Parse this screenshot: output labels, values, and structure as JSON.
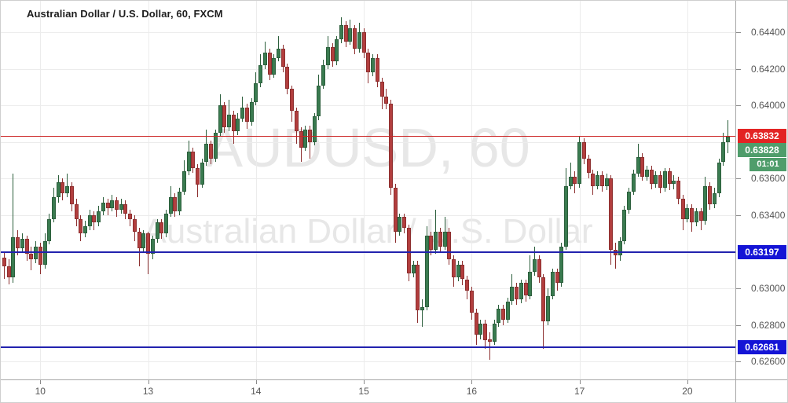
{
  "header": {
    "title": "Australian Dollar / U.S. Dollar, 60, FXCM"
  },
  "watermark": {
    "line1": "AUDUSD, 60",
    "line2": "Australian Dollar / U.S. Dollar"
  },
  "chart_data": {
    "type": "candlestick",
    "title": "Australian Dollar / U.S. Dollar, 60, FXCM",
    "grid": true,
    "legend_position": "none",
    "price_axis": {
      "visible_range": [
        0.62503,
        0.64572
      ],
      "grid_prices": [
        0.644,
        0.642,
        0.64,
        0.638,
        0.636,
        0.634,
        0.632,
        0.63,
        0.628,
        0.626
      ],
      "ticks": [
        {
          "price": 0.644,
          "label": "0.64400"
        },
        {
          "price": 0.642,
          "label": "0.64200"
        },
        {
          "price": 0.64,
          "label": "0.64000"
        },
        {
          "price": 0.636,
          "label": "0.63600"
        },
        {
          "price": 0.634,
          "label": "0.63400"
        },
        {
          "price": 0.63,
          "label": "0.63000"
        },
        {
          "price": 0.628,
          "label": "0.62800"
        },
        {
          "price": 0.626,
          "label": "0.62600"
        }
      ]
    },
    "time_axis": {
      "ticks": [
        {
          "label": "10",
          "bar": 8
        },
        {
          "label": "13",
          "bar": 32
        },
        {
          "label": "14",
          "bar": 56
        },
        {
          "label": "15",
          "bar": 80
        },
        {
          "label": "16",
          "bar": 104
        },
        {
          "label": "17",
          "bar": 128
        },
        {
          "label": "20",
          "bar": 152
        }
      ]
    },
    "horizontal_lines": [
      {
        "price": 0.63832,
        "label": "0.63832",
        "line_color": "#cc2424",
        "badge_color": "#e32424",
        "thickness": 1
      },
      {
        "price": 0.63197,
        "label": "0.63197",
        "line_color": "#2222ae",
        "badge_color": "#1414d6",
        "thickness": 2
      },
      {
        "price": 0.62681,
        "label": "0.62681",
        "line_color": "#2222ae",
        "badge_color": "#1414d6",
        "thickness": 2
      }
    ],
    "last_price_badge": {
      "label": "0.63828",
      "price": 0.63828,
      "color": "#4f9d6b"
    },
    "countdown_badge": {
      "label": "01:01",
      "color": "#4f9d6b"
    },
    "colors": {
      "up_fill": "#3a7b50",
      "up_border": "#2c5f3c",
      "down_fill": "#b23e3e",
      "down_border": "#8d2f2f",
      "grid": "#ececec",
      "axis_text": "#555555",
      "watermark": "#e7e7e7"
    },
    "candles": [
      [
        0.6317,
        0.632,
        0.6305,
        0.6312
      ],
      [
        0.6312,
        0.6316,
        0.6302,
        0.6306
      ],
      [
        0.6306,
        0.6363,
        0.6303,
        0.6328
      ],
      [
        0.6328,
        0.6332,
        0.6318,
        0.6322
      ],
      [
        0.6322,
        0.633,
        0.632,
        0.6327
      ],
      [
        0.6327,
        0.6329,
        0.6315,
        0.6319
      ],
      [
        0.6319,
        0.6323,
        0.631,
        0.6316
      ],
      [
        0.6316,
        0.6326,
        0.6314,
        0.6323
      ],
      [
        0.6323,
        0.6325,
        0.6308,
        0.6313
      ],
      [
        0.6313,
        0.633,
        0.6311,
        0.6326
      ],
      [
        0.6326,
        0.6341,
        0.6324,
        0.6338
      ],
      [
        0.6338,
        0.6355,
        0.6336,
        0.635
      ],
      [
        0.635,
        0.6362,
        0.6347,
        0.6358
      ],
      [
        0.6358,
        0.636,
        0.6348,
        0.6352
      ],
      [
        0.6352,
        0.6363,
        0.635,
        0.6356
      ],
      [
        0.6356,
        0.6358,
        0.6342,
        0.6346
      ],
      [
        0.6346,
        0.6349,
        0.6334,
        0.6338
      ],
      [
        0.6338,
        0.634,
        0.6326,
        0.633
      ],
      [
        0.633,
        0.6337,
        0.6328,
        0.6334
      ],
      [
        0.6334,
        0.6343,
        0.6332,
        0.634
      ],
      [
        0.634,
        0.6342,
        0.6332,
        0.6336
      ],
      [
        0.6336,
        0.6345,
        0.6334,
        0.6342
      ],
      [
        0.6342,
        0.635,
        0.634,
        0.6347
      ],
      [
        0.6347,
        0.6349,
        0.634,
        0.6344
      ],
      [
        0.6344,
        0.6351,
        0.6342,
        0.6348
      ],
      [
        0.6348,
        0.635,
        0.6339,
        0.6343
      ],
      [
        0.6343,
        0.6349,
        0.6341,
        0.6346
      ],
      [
        0.6346,
        0.6348,
        0.6338,
        0.6341
      ],
      [
        0.6341,
        0.6343,
        0.6334,
        0.6338
      ],
      [
        0.6338,
        0.634,
        0.6326,
        0.6331
      ],
      [
        0.6331,
        0.6333,
        0.6312,
        0.6322
      ],
      [
        0.6322,
        0.6332,
        0.632,
        0.633
      ],
      [
        0.633,
        0.6331,
        0.6308,
        0.6319
      ],
      [
        0.6319,
        0.6329,
        0.6316,
        0.6327
      ],
      [
        0.6327,
        0.6338,
        0.6325,
        0.6336
      ],
      [
        0.6336,
        0.6338,
        0.6327,
        0.633
      ],
      [
        0.633,
        0.6343,
        0.6328,
        0.6341
      ],
      [
        0.6341,
        0.6356,
        0.6339,
        0.635
      ],
      [
        0.635,
        0.6352,
        0.6339,
        0.6342
      ],
      [
        0.6342,
        0.6355,
        0.634,
        0.6353
      ],
      [
        0.6353,
        0.637,
        0.6351,
        0.6364
      ],
      [
        0.6364,
        0.6381,
        0.6362,
        0.6375
      ],
      [
        0.6375,
        0.6377,
        0.6363,
        0.6366
      ],
      [
        0.6366,
        0.6368,
        0.635,
        0.6357
      ],
      [
        0.6357,
        0.6371,
        0.6355,
        0.6369
      ],
      [
        0.6369,
        0.6387,
        0.6367,
        0.6379
      ],
      [
        0.6379,
        0.6381,
        0.6368,
        0.6371
      ],
      [
        0.6371,
        0.6387,
        0.6369,
        0.6385
      ],
      [
        0.6385,
        0.6406,
        0.6383,
        0.64
      ],
      [
        0.64,
        0.6402,
        0.6385,
        0.6388
      ],
      [
        0.6388,
        0.6403,
        0.6386,
        0.6395
      ],
      [
        0.6395,
        0.6397,
        0.6379,
        0.6386
      ],
      [
        0.6386,
        0.6396,
        0.6384,
        0.6393
      ],
      [
        0.6393,
        0.6405,
        0.6391,
        0.6399
      ],
      [
        0.6399,
        0.6401,
        0.6387,
        0.6391
      ],
      [
        0.6391,
        0.6404,
        0.6389,
        0.6402
      ],
      [
        0.6402,
        0.6418,
        0.64,
        0.6412
      ],
      [
        0.6412,
        0.6428,
        0.641,
        0.6422
      ],
      [
        0.6422,
        0.6435,
        0.642,
        0.6429
      ],
      [
        0.6429,
        0.6431,
        0.6414,
        0.6417
      ],
      [
        0.6417,
        0.6428,
        0.6415,
        0.6426
      ],
      [
        0.6426,
        0.6438,
        0.6424,
        0.6431
      ],
      [
        0.6431,
        0.6433,
        0.6418,
        0.6421
      ],
      [
        0.6421,
        0.6423,
        0.6406,
        0.6409
      ],
      [
        0.6409,
        0.6411,
        0.6391,
        0.6397
      ],
      [
        0.6397,
        0.6399,
        0.6379,
        0.6386
      ],
      [
        0.6386,
        0.6388,
        0.6369,
        0.6377
      ],
      [
        0.6377,
        0.6389,
        0.6375,
        0.6387
      ],
      [
        0.6387,
        0.6389,
        0.6371,
        0.638
      ],
      [
        0.638,
        0.6396,
        0.6378,
        0.6394
      ],
      [
        0.6394,
        0.6417,
        0.6392,
        0.6411
      ],
      [
        0.6411,
        0.6425,
        0.6409,
        0.6422
      ],
      [
        0.6422,
        0.6438,
        0.642,
        0.6432
      ],
      [
        0.6432,
        0.6434,
        0.6421,
        0.6424
      ],
      [
        0.6424,
        0.6438,
        0.6422,
        0.6436
      ],
      [
        0.6436,
        0.6448,
        0.6434,
        0.6444
      ],
      [
        0.6444,
        0.6446,
        0.6432,
        0.6435
      ],
      [
        0.6435,
        0.6447,
        0.6433,
        0.6442
      ],
      [
        0.6442,
        0.6444,
        0.6428,
        0.6431
      ],
      [
        0.6431,
        0.6445,
        0.6429,
        0.644
      ],
      [
        0.644,
        0.6442,
        0.6426,
        0.6429
      ],
      [
        0.6429,
        0.6431,
        0.6412,
        0.6418
      ],
      [
        0.6418,
        0.6428,
        0.6416,
        0.6426
      ],
      [
        0.6426,
        0.6428,
        0.641,
        0.6413
      ],
      [
        0.6413,
        0.6415,
        0.6398,
        0.6405
      ],
      [
        0.6405,
        0.6409,
        0.6398,
        0.6401
      ],
      [
        0.6401,
        0.6403,
        0.6351,
        0.6355
      ],
      [
        0.6355,
        0.6357,
        0.6325,
        0.6331
      ],
      [
        0.6331,
        0.6341,
        0.6329,
        0.6339
      ],
      [
        0.6339,
        0.6341,
        0.633,
        0.6333
      ],
      [
        0.6333,
        0.6335,
        0.6304,
        0.6308
      ],
      [
        0.6308,
        0.6315,
        0.6306,
        0.6313
      ],
      [
        0.6313,
        0.6315,
        0.6281,
        0.6288
      ],
      [
        0.6288,
        0.6294,
        0.6279,
        0.629
      ],
      [
        0.629,
        0.6334,
        0.6288,
        0.6329
      ],
      [
        0.6329,
        0.6331,
        0.6318,
        0.6321
      ],
      [
        0.6321,
        0.6343,
        0.6319,
        0.6331
      ],
      [
        0.6331,
        0.6333,
        0.632,
        0.6323
      ],
      [
        0.6323,
        0.6339,
        0.6321,
        0.6331
      ],
      [
        0.6331,
        0.6333,
        0.6313,
        0.6316
      ],
      [
        0.6316,
        0.6318,
        0.6301,
        0.6306
      ],
      [
        0.6306,
        0.6315,
        0.6304,
        0.6313
      ],
      [
        0.6313,
        0.6315,
        0.6302,
        0.6305
      ],
      [
        0.6305,
        0.6307,
        0.6294,
        0.6299
      ],
      [
        0.6299,
        0.6301,
        0.6283,
        0.6287
      ],
      [
        0.6287,
        0.6289,
        0.6269,
        0.6275
      ],
      [
        0.6275,
        0.6283,
        0.6272,
        0.6281
      ],
      [
        0.6281,
        0.6283,
        0.6267,
        0.6272
      ],
      [
        0.6272,
        0.6276,
        0.6261,
        0.6271
      ],
      [
        0.6271,
        0.6283,
        0.6269,
        0.6281
      ],
      [
        0.6281,
        0.6291,
        0.6279,
        0.6289
      ],
      [
        0.6289,
        0.6291,
        0.628,
        0.6283
      ],
      [
        0.6283,
        0.6295,
        0.6281,
        0.6293
      ],
      [
        0.6293,
        0.6308,
        0.6291,
        0.6301
      ],
      [
        0.6301,
        0.6303,
        0.6291,
        0.6294
      ],
      [
        0.6294,
        0.6305,
        0.6292,
        0.6303
      ],
      [
        0.6303,
        0.6305,
        0.6293,
        0.6296
      ],
      [
        0.6296,
        0.6318,
        0.6294,
        0.6309
      ],
      [
        0.6309,
        0.6323,
        0.6307,
        0.6316
      ],
      [
        0.6316,
        0.6318,
        0.6303,
        0.6306
      ],
      [
        0.6306,
        0.6308,
        0.6267,
        0.6282
      ],
      [
        0.6282,
        0.63,
        0.628,
        0.6296
      ],
      [
        0.6296,
        0.6311,
        0.6294,
        0.6309
      ],
      [
        0.6309,
        0.6311,
        0.6299,
        0.6303
      ],
      [
        0.6303,
        0.6325,
        0.6301,
        0.6323
      ],
      [
        0.6323,
        0.6366,
        0.6321,
        0.6356
      ],
      [
        0.6356,
        0.6369,
        0.6354,
        0.6361
      ],
      [
        0.6361,
        0.6364,
        0.6352,
        0.6357
      ],
      [
        0.6357,
        0.63835,
        0.6355,
        0.638
      ],
      [
        0.638,
        0.6382,
        0.6368,
        0.6371
      ],
      [
        0.6371,
        0.6373,
        0.636,
        0.6363
      ],
      [
        0.6363,
        0.6365,
        0.6351,
        0.6356
      ],
      [
        0.6356,
        0.6364,
        0.6354,
        0.6362
      ],
      [
        0.6362,
        0.6364,
        0.6353,
        0.6356
      ],
      [
        0.6356,
        0.6363,
        0.6354,
        0.636
      ],
      [
        0.636,
        0.6362,
        0.6313,
        0.6321
      ],
      [
        0.6321,
        0.6325,
        0.6311,
        0.6318
      ],
      [
        0.6318,
        0.6328,
        0.6315,
        0.6326
      ],
      [
        0.6326,
        0.6345,
        0.6324,
        0.6343
      ],
      [
        0.6343,
        0.6355,
        0.6341,
        0.6353
      ],
      [
        0.6353,
        0.6365,
        0.6351,
        0.6363
      ],
      [
        0.6363,
        0.6379,
        0.6361,
        0.6372
      ],
      [
        0.6372,
        0.6374,
        0.6359,
        0.6361
      ],
      [
        0.6361,
        0.6367,
        0.6359,
        0.6365
      ],
      [
        0.6365,
        0.6367,
        0.6354,
        0.6357
      ],
      [
        0.6357,
        0.6364,
        0.6355,
        0.6362
      ],
      [
        0.6362,
        0.6364,
        0.6352,
        0.6355
      ],
      [
        0.6355,
        0.6366,
        0.6353,
        0.6364
      ],
      [
        0.6364,
        0.6366,
        0.6354,
        0.6357
      ],
      [
        0.6357,
        0.6362,
        0.6354,
        0.6359
      ],
      [
        0.6359,
        0.6361,
        0.6346,
        0.6349
      ],
      [
        0.6349,
        0.6351,
        0.6332,
        0.6338
      ],
      [
        0.6338,
        0.6346,
        0.6336,
        0.6344
      ],
      [
        0.6344,
        0.6346,
        0.6331,
        0.6336
      ],
      [
        0.6336,
        0.6344,
        0.6334,
        0.6342
      ],
      [
        0.6342,
        0.6344,
        0.6332,
        0.6337
      ],
      [
        0.6337,
        0.6361,
        0.6335,
        0.6356
      ],
      [
        0.6356,
        0.6358,
        0.6343,
        0.6346
      ],
      [
        0.6346,
        0.6355,
        0.6344,
        0.6352
      ],
      [
        0.6352,
        0.6371,
        0.635,
        0.6369
      ],
      [
        0.6369,
        0.6385,
        0.6367,
        0.638
      ],
      [
        0.638,
        0.6392,
        0.6374,
        0.63828
      ]
    ]
  }
}
